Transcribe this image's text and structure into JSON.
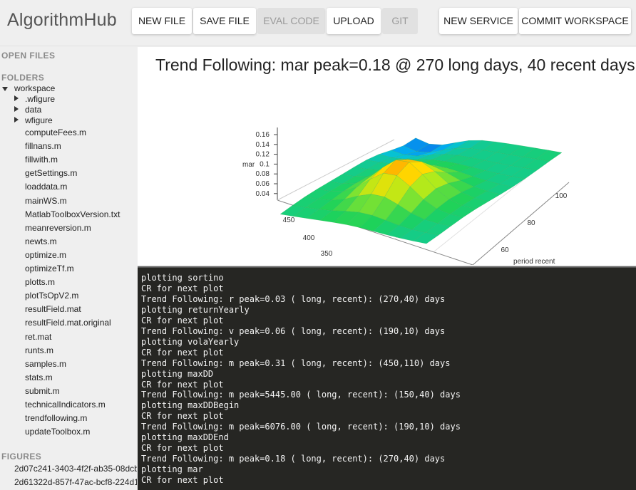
{
  "app": {
    "title": "AlgorithmHub"
  },
  "toolbar": {
    "new_file": "NEW FILE",
    "save_file": "SAVE FILE",
    "eval_code": "EVAL CODE",
    "upload": "UPLOAD",
    "git": "GIT",
    "new_service": "NEW SERVICE",
    "commit_workspace": "COMMIT WORKSPACE"
  },
  "sidebar": {
    "open_files_label": "OPEN FILES",
    "folders_label": "FOLDERS",
    "root": "workspace",
    "folders": [
      ".wfigure",
      "data",
      "wfigure"
    ],
    "files": [
      "computeFees.m",
      "fillnans.m",
      "fillwith.m",
      "getSettings.m",
      "loaddata.m",
      "mainWS.m",
      "MatlabToolboxVersion.txt",
      "meanreversion.m",
      "newts.m",
      "optimize.m",
      "optimizeTf.m",
      "plotts.m",
      "plotTsOpV2.m",
      "resultField.mat",
      "resultField.mat.original",
      "ret.mat",
      "runts.m",
      "samples.m",
      "stats.m",
      "submit.m",
      "technicalIndicators.m",
      "trendfollowing.m",
      "updateToolbox.m"
    ],
    "figures_label": "FIGURES",
    "figures": [
      "2d07c241-3403-4f2f-ab35-08dcb",
      "2d61322d-857f-47ac-bcf8-224d1"
    ]
  },
  "figure": {
    "title": "Trend Following: mar peak=0.18 @ 270 long days, 40 recent days",
    "z_label": "mar",
    "z_ticks": [
      "0.16",
      "0.14",
      "0.12",
      "0.1",
      "0.08",
      "0.06",
      "0.04"
    ],
    "x_ticks": [
      "450",
      "400",
      "350"
    ],
    "y_ticks": [
      "100",
      "80",
      "60"
    ],
    "y_label": "period recent",
    "colors": {
      "high": "#e83c00",
      "mid": "#ffe000",
      "low": "#22cc44",
      "min": "#1a30e0"
    }
  },
  "console": {
    "lines": [
      "plotting sortino",
      "CR for next plot",
      "Trend Following: r peak=0.03 ( long, recent): (270,40) days",
      "plotting returnYearly",
      "CR for next plot",
      "Trend Following: v peak=0.06 ( long, recent): (190,10) days",
      "plotting volaYearly",
      "CR for next plot",
      "Trend Following: m peak=0.31 ( long, recent): (450,110) days",
      "plotting maxDD",
      "CR for next plot",
      "Trend Following: m peak=5445.00 ( long, recent): (150,40) days",
      "plotting maxDDBegin",
      "CR for next plot",
      "Trend Following: m peak=6076.00 ( long, recent): (190,10) days",
      "plotting maxDDEnd",
      "CR for next plot",
      "Trend Following: m peak=0.18 ( long, recent): (270,40) days",
      "plotting mar",
      "CR for next plot"
    ]
  }
}
